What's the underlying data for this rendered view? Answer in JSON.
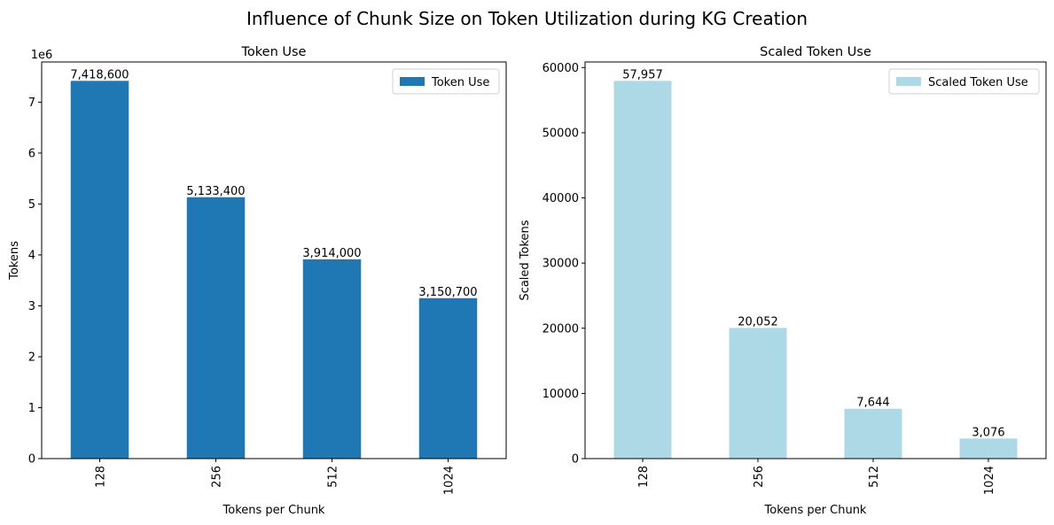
{
  "figure_title": "Influence of Chunk Size on Token Utilization during KG Creation",
  "chart_data": [
    {
      "type": "bar",
      "title": "Token Use",
      "xlabel": "Tokens per Chunk",
      "ylabel": "Tokens",
      "categories": [
        "128",
        "256",
        "512",
        "1024"
      ],
      "values": [
        7418600,
        5133400,
        3914000,
        3150700
      ],
      "value_labels": [
        "7,418,600",
        "5,133,400",
        "3,914,000",
        "3,150,700"
      ],
      "ylim": [
        0,
        7789530
      ],
      "yticks": [
        0,
        1000000,
        2000000,
        3000000,
        4000000,
        5000000,
        6000000,
        7000000
      ],
      "ytick_labels": [
        "0",
        "1",
        "2",
        "3",
        "4",
        "5",
        "6",
        "7"
      ],
      "offset_label": "1e6",
      "legend": "Token Use",
      "legend_position": "top-right",
      "color": "#1f77b4",
      "grid": false
    },
    {
      "type": "bar",
      "title": "Scaled Token Use",
      "xlabel": "Tokens per Chunk",
      "ylabel": "Scaled Tokens",
      "categories": [
        "128",
        "256",
        "512",
        "1024"
      ],
      "values": [
        57957,
        20052,
        7644,
        3076
      ],
      "value_labels": [
        "57,957",
        "20,052",
        "7,644",
        "3,076"
      ],
      "ylim": [
        0,
        60855
      ],
      "yticks": [
        0,
        10000,
        20000,
        30000,
        40000,
        50000,
        60000
      ],
      "ytick_labels": [
        "0",
        "10000",
        "20000",
        "30000",
        "40000",
        "50000",
        "60000"
      ],
      "offset_label": "",
      "legend": "Scaled Token Use",
      "legend_position": "top-right",
      "color": "#add8e6",
      "grid": false
    }
  ]
}
